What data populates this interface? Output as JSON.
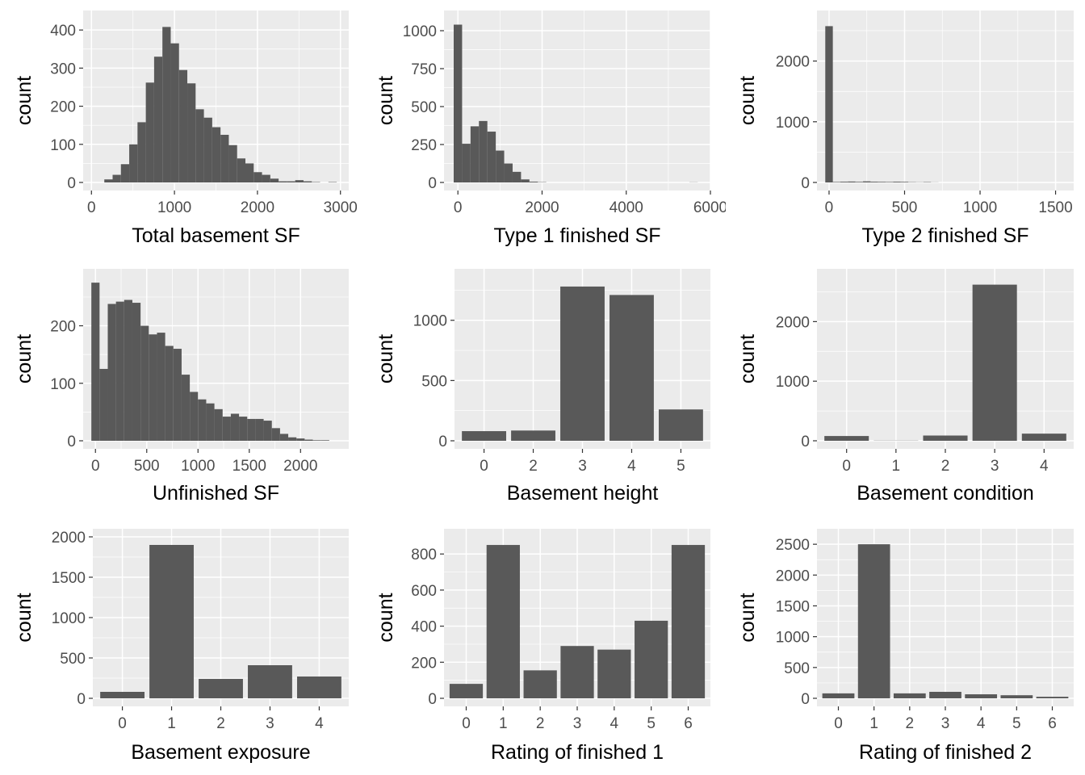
{
  "chart_data": [
    {
      "type": "histogram",
      "xlabel": "Total basement SF",
      "ylabel": "count",
      "xlim": [
        -100,
        3100
      ],
      "ylim": [
        0,
        430
      ],
      "xticks": [
        0,
        1000,
        2000,
        3000
      ],
      "yticks": [
        0,
        100,
        200,
        300,
        400
      ],
      "bins": [
        {
          "x0": 155,
          "x1": 255,
          "count": 8
        },
        {
          "x0": 255,
          "x1": 355,
          "count": 20
        },
        {
          "x0": 355,
          "x1": 455,
          "count": 48
        },
        {
          "x0": 455,
          "x1": 555,
          "count": 100
        },
        {
          "x0": 555,
          "x1": 655,
          "count": 158
        },
        {
          "x0": 655,
          "x1": 755,
          "count": 262
        },
        {
          "x0": 755,
          "x1": 855,
          "count": 330
        },
        {
          "x0": 855,
          "x1": 955,
          "count": 408
        },
        {
          "x0": 955,
          "x1": 1055,
          "count": 365
        },
        {
          "x0": 1055,
          "x1": 1155,
          "count": 295
        },
        {
          "x0": 1155,
          "x1": 1255,
          "count": 260
        },
        {
          "x0": 1255,
          "x1": 1355,
          "count": 192
        },
        {
          "x0": 1355,
          "x1": 1455,
          "count": 170
        },
        {
          "x0": 1455,
          "x1": 1555,
          "count": 145
        },
        {
          "x0": 1555,
          "x1": 1655,
          "count": 125
        },
        {
          "x0": 1655,
          "x1": 1755,
          "count": 98
        },
        {
          "x0": 1755,
          "x1": 1855,
          "count": 63
        },
        {
          "x0": 1855,
          "x1": 1955,
          "count": 50
        },
        {
          "x0": 1955,
          "x1": 2055,
          "count": 27
        },
        {
          "x0": 2055,
          "x1": 2155,
          "count": 20
        },
        {
          "x0": 2155,
          "x1": 2255,
          "count": 10
        },
        {
          "x0": 2255,
          "x1": 2355,
          "count": 3
        },
        {
          "x0": 2355,
          "x1": 2455,
          "count": 3
        },
        {
          "x0": 2455,
          "x1": 2555,
          "count": 6
        },
        {
          "x0": 2555,
          "x1": 2655,
          "count": 3
        },
        {
          "x0": 2655,
          "x1": 2755,
          "count": 1
        },
        {
          "x0": 2755,
          "x1": 2855,
          "count": 0
        },
        {
          "x0": 2855,
          "x1": 2955,
          "count": 1
        }
      ]
    },
    {
      "type": "histogram",
      "xlabel": "Type 1 finished SF",
      "ylabel": "count",
      "xlim": [
        -330,
        6000
      ],
      "ylim": [
        0,
        1080
      ],
      "xticks": [
        0,
        2000,
        4000,
        6000
      ],
      "xtick_labels": [
        "0",
        "2000",
        "4000",
        "6000"
      ],
      "yticks": [
        0,
        250,
        500,
        750,
        1000
      ],
      "bins": [
        {
          "x0": -100,
          "x1": 100,
          "count": 1040
        },
        {
          "x0": 100,
          "x1": 300,
          "count": 255
        },
        {
          "x0": 300,
          "x1": 500,
          "count": 370
        },
        {
          "x0": 500,
          "x1": 700,
          "count": 405
        },
        {
          "x0": 700,
          "x1": 900,
          "count": 335
        },
        {
          "x0": 900,
          "x1": 1100,
          "count": 210
        },
        {
          "x0": 1100,
          "x1": 1300,
          "count": 125
        },
        {
          "x0": 1300,
          "x1": 1500,
          "count": 70
        },
        {
          "x0": 1500,
          "x1": 1700,
          "count": 20
        },
        {
          "x0": 1700,
          "x1": 1900,
          "count": 5
        },
        {
          "x0": 1900,
          "x1": 2100,
          "count": 2
        },
        {
          "x0": 5500,
          "x1": 5700,
          "count": 1
        }
      ]
    },
    {
      "type": "histogram",
      "xlabel": "Type 2 finished SF",
      "ylabel": "count",
      "xlim": [
        -80,
        1620
      ],
      "ylim": [
        0,
        2700
      ],
      "xticks": [
        0,
        500,
        1000,
        1500
      ],
      "yticks": [
        0,
        1000,
        2000
      ],
      "bins": [
        {
          "x0": -25,
          "x1": 25,
          "count": 2575
        },
        {
          "x0": 25,
          "x1": 75,
          "count": 8
        },
        {
          "x0": 75,
          "x1": 125,
          "count": 12
        },
        {
          "x0": 125,
          "x1": 175,
          "count": 15
        },
        {
          "x0": 175,
          "x1": 225,
          "count": 10
        },
        {
          "x0": 225,
          "x1": 275,
          "count": 18
        },
        {
          "x0": 275,
          "x1": 325,
          "count": 12
        },
        {
          "x0": 325,
          "x1": 375,
          "count": 10
        },
        {
          "x0": 375,
          "x1": 425,
          "count": 8
        },
        {
          "x0": 425,
          "x1": 475,
          "count": 12
        },
        {
          "x0": 475,
          "x1": 525,
          "count": 10
        },
        {
          "x0": 525,
          "x1": 575,
          "count": 5
        },
        {
          "x0": 575,
          "x1": 625,
          "count": 3
        },
        {
          "x0": 625,
          "x1": 675,
          "count": 6
        },
        {
          "x0": 675,
          "x1": 725,
          "count": 2
        }
      ]
    },
    {
      "type": "histogram",
      "xlabel": "Unfinished SF",
      "ylabel": "count",
      "xlim": [
        -120,
        2470
      ],
      "ylim": [
        0,
        285
      ],
      "xticks": [
        0,
        500,
        1000,
        1500,
        2000
      ],
      "yticks": [
        0,
        100,
        200
      ],
      "bins": [
        {
          "x0": -40,
          "x1": 40,
          "count": 275
        },
        {
          "x0": 40,
          "x1": 120,
          "count": 125
        },
        {
          "x0": 120,
          "x1": 200,
          "count": 238
        },
        {
          "x0": 200,
          "x1": 280,
          "count": 242
        },
        {
          "x0": 280,
          "x1": 360,
          "count": 245
        },
        {
          "x0": 360,
          "x1": 440,
          "count": 240
        },
        {
          "x0": 440,
          "x1": 520,
          "count": 200
        },
        {
          "x0": 520,
          "x1": 600,
          "count": 185
        },
        {
          "x0": 600,
          "x1": 680,
          "count": 188
        },
        {
          "x0": 680,
          "x1": 760,
          "count": 165
        },
        {
          "x0": 760,
          "x1": 840,
          "count": 160
        },
        {
          "x0": 840,
          "x1": 920,
          "count": 115
        },
        {
          "x0": 920,
          "x1": 1000,
          "count": 85
        },
        {
          "x0": 1000,
          "x1": 1080,
          "count": 72
        },
        {
          "x0": 1080,
          "x1": 1160,
          "count": 65
        },
        {
          "x0": 1160,
          "x1": 1240,
          "count": 55
        },
        {
          "x0": 1240,
          "x1": 1320,
          "count": 42
        },
        {
          "x0": 1320,
          "x1": 1400,
          "count": 47
        },
        {
          "x0": 1400,
          "x1": 1480,
          "count": 42
        },
        {
          "x0": 1480,
          "x1": 1560,
          "count": 38
        },
        {
          "x0": 1560,
          "x1": 1640,
          "count": 38
        },
        {
          "x0": 1640,
          "x1": 1720,
          "count": 35
        },
        {
          "x0": 1720,
          "x1": 1800,
          "count": 22
        },
        {
          "x0": 1800,
          "x1": 1880,
          "count": 12
        },
        {
          "x0": 1880,
          "x1": 1960,
          "count": 6
        },
        {
          "x0": 1960,
          "x1": 2040,
          "count": 4
        },
        {
          "x0": 2040,
          "x1": 2120,
          "count": 2
        },
        {
          "x0": 2120,
          "x1": 2200,
          "count": 1
        },
        {
          "x0": 2200,
          "x1": 2280,
          "count": 1
        }
      ]
    },
    {
      "type": "bar",
      "xlabel": "Basement height",
      "ylabel": "count",
      "categories": [
        "0",
        "2",
        "3",
        "4",
        "5"
      ],
      "values": [
        80,
        85,
        1280,
        1210,
        260
      ],
      "ylim": [
        0,
        1360
      ],
      "yticks": [
        0,
        500,
        1000
      ]
    },
    {
      "type": "bar",
      "xlabel": "Basement condition",
      "ylabel": "count",
      "categories": [
        "0",
        "1",
        "2",
        "3",
        "4"
      ],
      "values": [
        80,
        3,
        88,
        2620,
        120
      ],
      "ylim": [
        0,
        2750
      ],
      "yticks": [
        0,
        1000,
        2000
      ]
    },
    {
      "type": "bar",
      "xlabel": "Basement exposure",
      "ylabel": "count",
      "categories": [
        "0",
        "1",
        "2",
        "3",
        "4"
      ],
      "values": [
        80,
        1900,
        240,
        410,
        270
      ],
      "ylim": [
        0,
        2000
      ],
      "yticks": [
        0,
        500,
        1000,
        1500,
        2000
      ]
    },
    {
      "type": "bar",
      "xlabel": "Rating of finished 1",
      "ylabel": "count",
      "categories": [
        "0",
        "1",
        "2",
        "3",
        "4",
        "5",
        "6"
      ],
      "values": [
        80,
        850,
        155,
        290,
        270,
        430,
        850
      ],
      "ylim": [
        0,
        895
      ],
      "yticks": [
        0,
        200,
        400,
        600,
        800
      ]
    },
    {
      "type": "bar",
      "xlabel": "Rating of finished 2",
      "ylabel": "count",
      "categories": [
        "0",
        "1",
        "2",
        "3",
        "4",
        "5",
        "6"
      ],
      "values": [
        80,
        2500,
        80,
        105,
        65,
        50,
        25
      ],
      "ylim": [
        0,
        2620
      ],
      "yticks": [
        0,
        500,
        1000,
        1500,
        2000,
        2500
      ]
    }
  ],
  "colors": {
    "panel_background": "#ebebeb",
    "grid_major": "#ffffff",
    "bar_fill": "#595959",
    "tick_text": "#4d4d4d",
    "axis_title_text": "#000000",
    "tick_mark": "#333333"
  }
}
